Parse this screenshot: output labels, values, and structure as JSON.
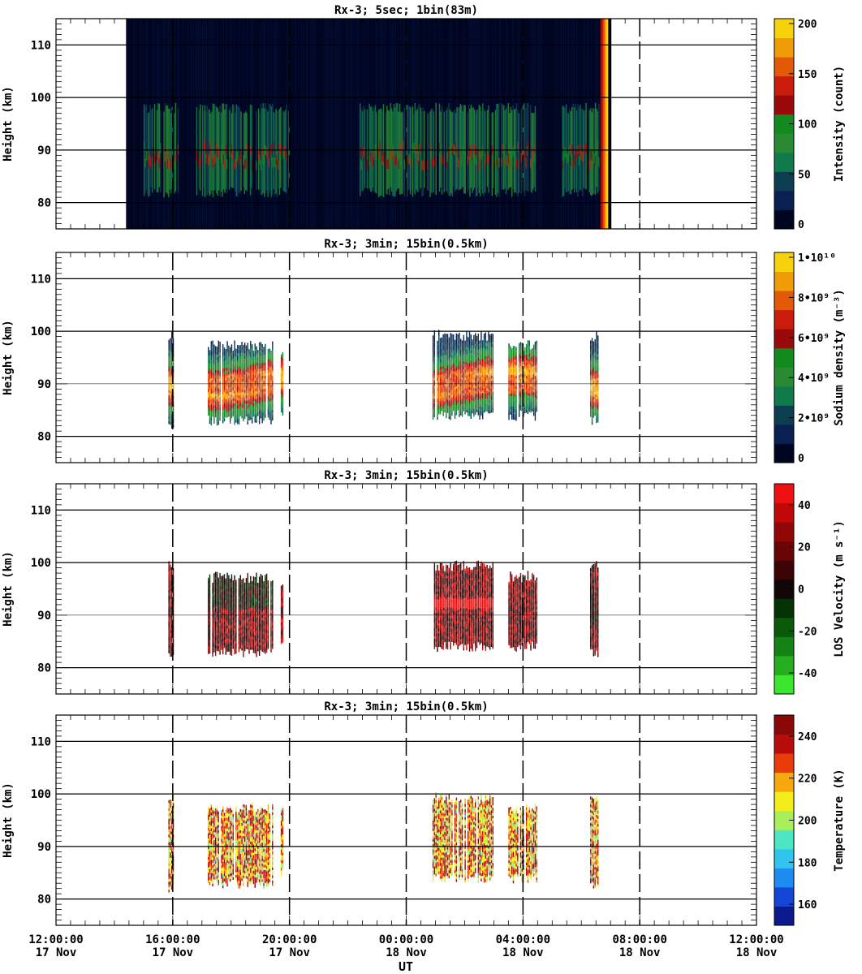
{
  "figure": {
    "xlabel": "UT"
  },
  "panels": [
    {
      "title": "Rx-3;  5sec; 1bin(83m)",
      "ylabel": "Height (km)",
      "colorbar_label": "Intensity (count)",
      "colorbar_ticks": [
        "0",
        "50",
        "100",
        "150",
        "200"
      ],
      "kind": "intensity"
    },
    {
      "title": "Rx-3; 3min; 15bin(0.5km)",
      "ylabel": "Height (km)",
      "colorbar_label": "Sodium density (m⁻³)",
      "colorbar_ticks": [
        "0",
        "2•10⁹",
        "4•10⁹",
        "6•10⁹",
        "8•10⁹",
        "1•10¹⁰"
      ],
      "kind": "density"
    },
    {
      "title": "Rx-3; 3min; 15bin(0.5km)",
      "ylabel": "Height (km)",
      "colorbar_label": "LOS Velocity (m s⁻¹)",
      "colorbar_ticks": [
        "-40",
        "-20",
        "0",
        "20",
        "40"
      ],
      "kind": "velocity"
    },
    {
      "title": "Rx-3; 3min; 15bin(0.5km)",
      "ylabel": "Height (km)",
      "colorbar_label": "Temperature (K)",
      "colorbar_ticks": [
        "160",
        "180",
        "200",
        "220",
        "240"
      ],
      "kind": "temperature"
    }
  ],
  "x_tick_labels": [
    [
      "12:00:00",
      "17 Nov"
    ],
    [
      "16:00:00",
      "17 Nov"
    ],
    [
      "20:00:00",
      "17 Nov"
    ],
    [
      "00:00:00",
      "18 Nov"
    ],
    [
      "04:00:00",
      "18 Nov"
    ],
    [
      "08:00:00",
      "18 Nov"
    ],
    [
      "12:00:00",
      "18 Nov"
    ]
  ],
  "y_tick_labels": [
    "80",
    "90",
    "100",
    "110"
  ],
  "chart_data": {
    "type": "heatmap",
    "x_unit": "hours since 12:00 UT 17 Nov",
    "xlim": [
      0,
      24
    ],
    "ylim": [
      75,
      115
    ],
    "y_ticks": [
      80,
      90,
      100,
      110
    ],
    "panels": [
      {
        "name": "Intensity (count)",
        "clim": [
          0,
          200
        ],
        "colors": [
          "#000522",
          "#0a2050",
          "#0c3e52",
          "#117a4a",
          "#2a8a34",
          "#138a1d",
          "#9a0a0a",
          "#c91c0b",
          "#e25a08",
          "#ef9c07",
          "#f6d10c"
        ],
        "observation_window_hours": [
          2.4,
          19.0
        ],
        "signal_segments_hours": [
          [
            3.0,
            3.6
          ],
          [
            3.6,
            4.2
          ],
          [
            4.8,
            8.0
          ],
          [
            10.4,
            13.2
          ],
          [
            13.2,
            16.4
          ],
          [
            17.3,
            18.6
          ]
        ],
        "layer_km": [
          82,
          98
        ],
        "edge_hour": 18.9
      },
      {
        "name": "Sodium density (m-3)",
        "clim": [
          0,
          10000000000.0
        ],
        "colors": [
          "#000522",
          "#0a2050",
          "#0c3e52",
          "#117a4a",
          "#2a8a34",
          "#138a1d",
          "#9a0a0a",
          "#c91c0b",
          "#e25a08",
          "#ef9c07",
          "#f6d10c"
        ],
        "segments": [
          {
            "x": [
              3.85,
              4.05
            ],
            "y": [
              81,
              100
            ]
          },
          {
            "x": [
              5.2,
              7.4
            ],
            "y": [
              82,
              98
            ]
          },
          {
            "x": [
              7.7,
              7.8
            ],
            "y": [
              84,
              97
            ]
          },
          {
            "x": [
              12.9,
              15.0
            ],
            "y": [
              83,
              100
            ]
          },
          {
            "x": [
              15.5,
              16.5
            ],
            "y": [
              83,
              98
            ]
          },
          {
            "x": [
              18.3,
              18.6
            ],
            "y": [
              82,
              100
            ]
          }
        ]
      },
      {
        "name": "LOS Velocity (m s-1)",
        "clim": [
          -50,
          50
        ],
        "colors": [
          "#3be62e",
          "#26ae21",
          "#148214",
          "#0a5a0a",
          "#053205",
          "#120606",
          "#3b0505",
          "#6a0505",
          "#930606",
          "#c20707",
          "#ee1010"
        ],
        "segments": [
          {
            "x": [
              3.85,
              4.05
            ],
            "y": [
              81,
              100
            ]
          },
          {
            "x": [
              5.2,
              7.4
            ],
            "y": [
              82,
              98
            ]
          },
          {
            "x": [
              7.7,
              7.8
            ],
            "y": [
              84,
              97
            ]
          },
          {
            "x": [
              12.9,
              15.0
            ],
            "y": [
              83,
              100
            ]
          },
          {
            "x": [
              15.5,
              16.5
            ],
            "y": [
              83,
              98
            ]
          },
          {
            "x": [
              18.3,
              18.6
            ],
            "y": [
              82,
              100
            ]
          }
        ]
      },
      {
        "name": "Temperature (K)",
        "clim": [
          150,
          250
        ],
        "colors": [
          "#0a1a8c",
          "#1545d6",
          "#1e8cf0",
          "#30c4ee",
          "#4ce6c2",
          "#a9ee5b",
          "#f3ee1a",
          "#f6a80d",
          "#ea3b0a",
          "#b80d0a",
          "#8a0808"
        ],
        "segments": [
          {
            "x": [
              3.85,
              4.05
            ],
            "y": [
              81,
              100
            ]
          },
          {
            "x": [
              5.2,
              7.4
            ],
            "y": [
              82,
              98
            ]
          },
          {
            "x": [
              7.7,
              7.8
            ],
            "y": [
              84,
              97
            ]
          },
          {
            "x": [
              12.9,
              15.0
            ],
            "y": [
              83,
              100
            ]
          },
          {
            "x": [
              15.5,
              16.5
            ],
            "y": [
              83,
              98
            ]
          },
          {
            "x": [
              18.3,
              18.6
            ],
            "y": [
              82,
              100
            ]
          }
        ]
      }
    ],
    "dashed_vertical_lines_hours": [
      4,
      8,
      12,
      16,
      20
    ],
    "solid_horizontal_lines_km": [
      80,
      90,
      100,
      110
    ]
  }
}
